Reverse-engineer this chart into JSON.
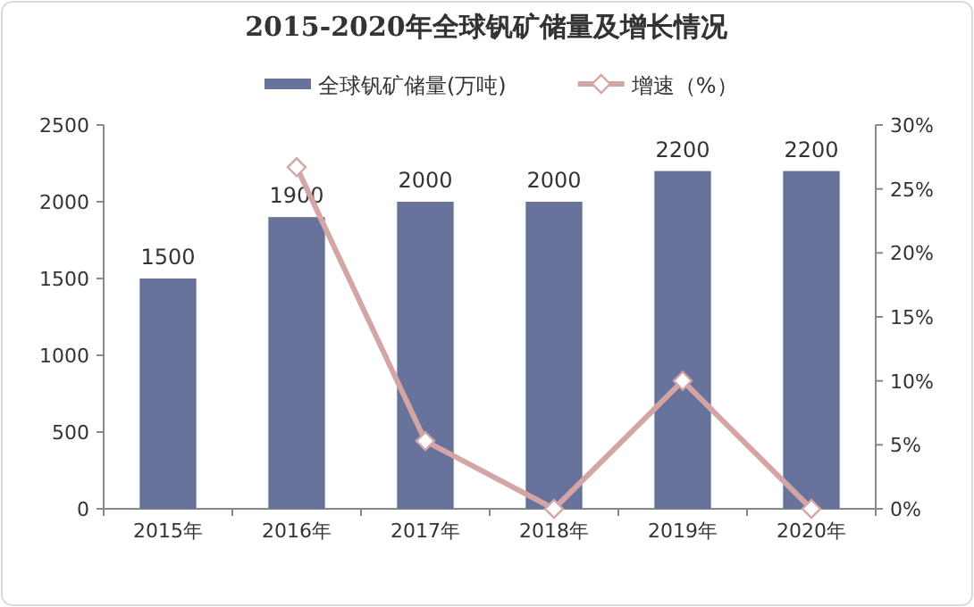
{
  "chart_data": {
    "type": "bar",
    "title": "2015-2020年全球钒矿储量及增长情况",
    "categories": [
      "2015年",
      "2016年",
      "2017年",
      "2018年",
      "2019年",
      "2020年"
    ],
    "series": [
      {
        "name": "全球钒矿储量(万吨)",
        "color": "#67739a",
        "values": [
          1500,
          1900,
          2000,
          2000,
          2200,
          2200
        ],
        "value_labels": [
          "1500",
          "1900",
          "2000",
          "2000",
          "2200",
          "2200"
        ]
      },
      {
        "name": "增速（%）",
        "type": "line",
        "axis": "y2",
        "marker": "diamond",
        "color": "#d4a5a5",
        "values": [
          null,
          26.7,
          5.3,
          0,
          10,
          0
        ]
      }
    ],
    "ylim": [
      0,
      2500
    ],
    "yticks": [
      0,
      500,
      1000,
      1500,
      2000,
      2500
    ],
    "y2lim": [
      0,
      30
    ],
    "y2ticks": [
      {
        "value": 0,
        "label": "0%"
      },
      {
        "value": 5,
        "label": "5%"
      },
      {
        "value": 10,
        "label": "10%"
      },
      {
        "value": 15,
        "label": "15%"
      },
      {
        "value": 20,
        "label": "20%"
      },
      {
        "value": 25,
        "label": "25%"
      },
      {
        "value": 30,
        "label": "30%"
      }
    ],
    "legend": "top"
  }
}
